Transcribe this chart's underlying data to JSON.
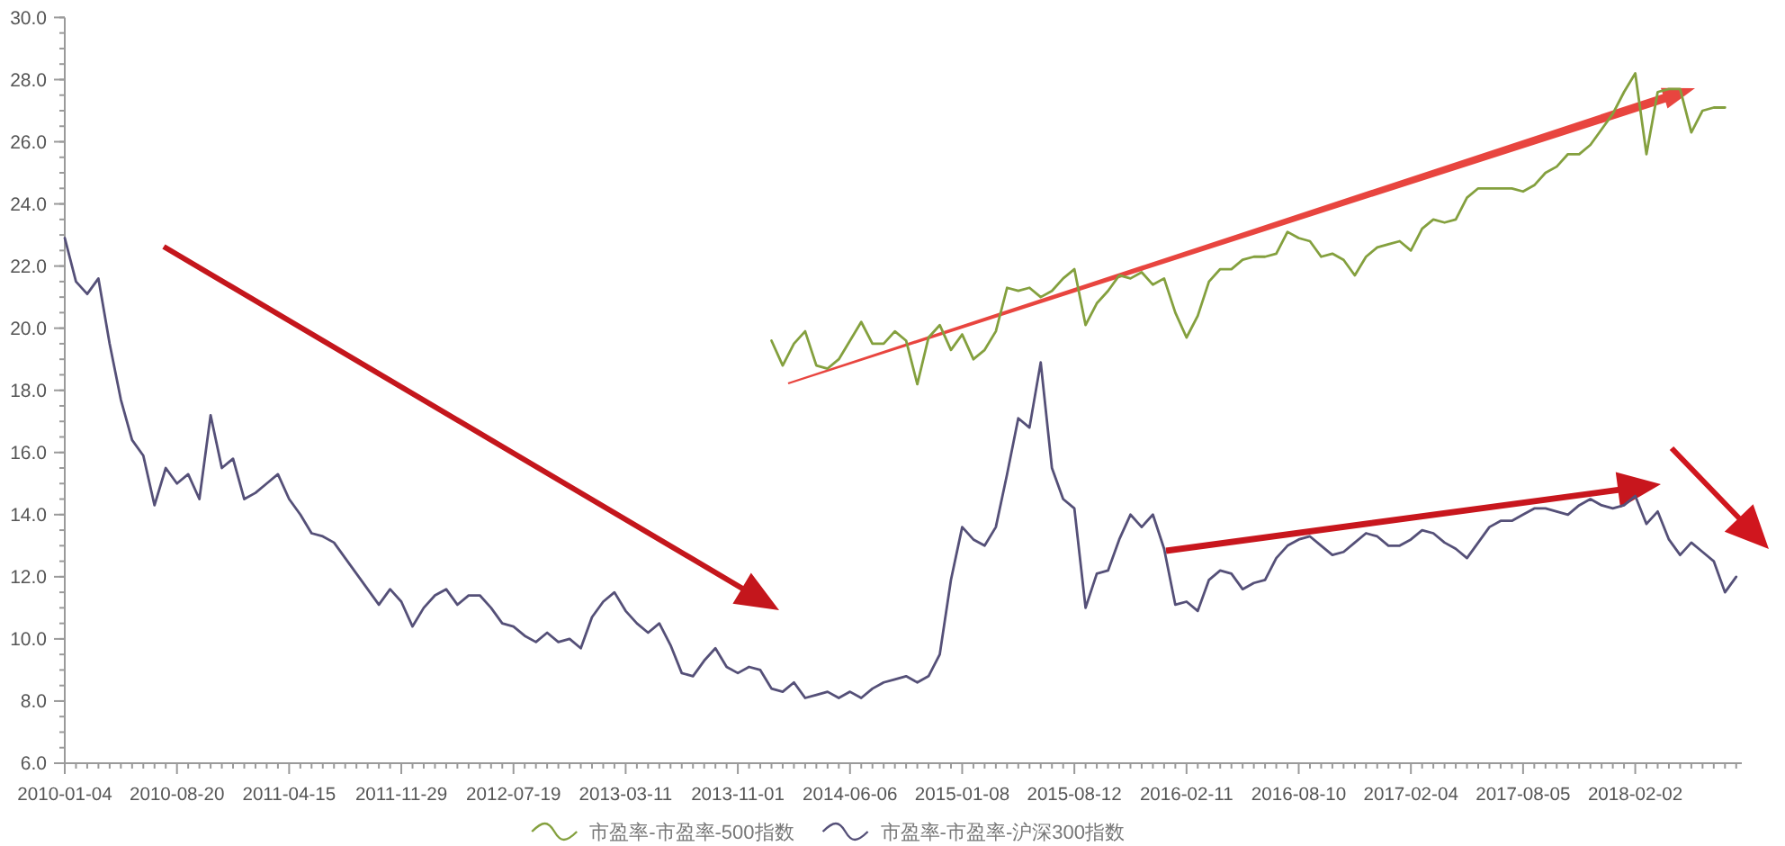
{
  "chart_data": {
    "type": "line",
    "legend": "bottom",
    "categories": [
      "2010-01-04",
      null,
      null,
      null,
      null,
      null,
      null,
      null,
      null,
      null,
      "2010-08-20",
      null,
      null,
      null,
      null,
      null,
      null,
      null,
      null,
      null,
      "2011-04-15",
      null,
      null,
      null,
      null,
      null,
      null,
      null,
      null,
      null,
      "2011-11-29",
      null,
      null,
      null,
      null,
      null,
      null,
      null,
      null,
      null,
      "2012-07-19",
      null,
      null,
      null,
      null,
      null,
      null,
      null,
      null,
      null,
      "2013-03-11",
      null,
      null,
      null,
      null,
      null,
      null,
      null,
      null,
      null,
      "2013-11-01",
      null,
      null,
      null,
      null,
      null,
      null,
      null,
      null,
      null,
      "2014-06-06",
      null,
      null,
      null,
      null,
      null,
      null,
      null,
      null,
      null,
      "2015-01-08",
      null,
      null,
      null,
      null,
      null,
      null,
      null,
      null,
      null,
      "2015-08-12",
      null,
      null,
      null,
      null,
      null,
      null,
      null,
      null,
      null,
      "2016-02-11",
      null,
      null,
      null,
      null,
      null,
      null,
      null,
      null,
      null,
      "2016-08-10",
      null,
      null,
      null,
      null,
      null,
      null,
      null,
      null,
      null,
      "2017-02-04",
      null,
      null,
      null,
      null,
      null,
      null,
      null,
      null,
      null,
      "2017-08-05",
      null,
      null,
      null,
      null,
      null,
      null,
      null,
      null,
      null,
      "2018-02-02",
      null,
      null,
      null,
      null,
      null,
      null,
      null,
      null,
      null
    ],
    "ylim": [
      6,
      30
    ],
    "yticks": [
      {
        "value": 6,
        "label": "6.0"
      },
      {
        "value": 8,
        "label": "8.0"
      },
      {
        "value": 10,
        "label": "10.0"
      },
      {
        "value": 12,
        "label": "12.0"
      },
      {
        "value": 14,
        "label": "14.0"
      },
      {
        "value": 16,
        "label": "16.0"
      },
      {
        "value": 18,
        "label": "18.0"
      },
      {
        "value": 20,
        "label": "20.0"
      },
      {
        "value": 22,
        "label": "22.0"
      },
      {
        "value": 24,
        "label": "24.0"
      },
      {
        "value": 26,
        "label": "26.0"
      },
      {
        "value": 28,
        "label": "28.0"
      },
      {
        "value": 30,
        "label": "30.0"
      }
    ],
    "series": [
      {
        "name": "市盈率-市盈率-500指数",
        "color": "#84a03e",
        "values": [
          null,
          null,
          null,
          null,
          null,
          null,
          null,
          null,
          null,
          null,
          null,
          null,
          null,
          null,
          null,
          null,
          null,
          null,
          null,
          null,
          null,
          null,
          null,
          null,
          null,
          null,
          null,
          null,
          null,
          null,
          null,
          null,
          null,
          null,
          null,
          null,
          null,
          null,
          null,
          null,
          null,
          null,
          null,
          null,
          null,
          null,
          null,
          null,
          null,
          null,
          null,
          null,
          null,
          null,
          null,
          null,
          null,
          null,
          null,
          null,
          null,
          null,
          null,
          19.6,
          18.8,
          19.5,
          19.9,
          18.8,
          18.7,
          19.0,
          19.6,
          20.2,
          19.5,
          19.5,
          19.9,
          19.6,
          18.2,
          19.7,
          20.1,
          19.3,
          19.8,
          19.0,
          19.3,
          19.9,
          21.3,
          21.2,
          21.3,
          21.0,
          21.2,
          21.6,
          21.9,
          20.1,
          20.8,
          21.2,
          21.7,
          21.6,
          21.8,
          21.4,
          21.6,
          20.5,
          19.7,
          20.4,
          21.5,
          21.9,
          21.9,
          22.2,
          22.3,
          22.3,
          22.4,
          23.1,
          22.9,
          22.8,
          22.3,
          22.4,
          22.2,
          21.7,
          22.3,
          22.6,
          22.7,
          22.8,
          22.5,
          23.2,
          23.5,
          23.4,
          23.5,
          24.2,
          24.5,
          24.5,
          24.5,
          24.5,
          24.4,
          24.6,
          25.0,
          25.2,
          25.6,
          25.6,
          25.9,
          26.4,
          26.9,
          27.6,
          28.2,
          25.6,
          27.6,
          27.7,
          27.7,
          26.3,
          27.0,
          27.1,
          27.1,
          null
        ]
      },
      {
        "name": "市盈率-市盈率-沪深300指数",
        "color": "#555078",
        "values": [
          22.9,
          21.5,
          21.1,
          21.6,
          19.5,
          17.7,
          16.4,
          15.9,
          14.3,
          15.5,
          15.0,
          15.3,
          14.5,
          17.2,
          15.5,
          15.8,
          14.5,
          14.7,
          15.0,
          15.3,
          14.5,
          14.0,
          13.4,
          13.3,
          13.1,
          12.6,
          12.1,
          11.6,
          11.1,
          11.6,
          11.2,
          10.4,
          11.0,
          11.4,
          11.6,
          11.1,
          11.4,
          11.4,
          11.0,
          10.5,
          10.4,
          10.1,
          9.9,
          10.2,
          9.9,
          10.0,
          9.7,
          10.7,
          11.2,
          11.5,
          10.9,
          10.5,
          10.2,
          10.5,
          9.8,
          8.9,
          8.8,
          9.3,
          9.7,
          9.1,
          8.9,
          9.1,
          9.0,
          8.4,
          8.3,
          8.6,
          8.1,
          8.2,
          8.3,
          8.1,
          8.3,
          8.1,
          8.4,
          8.6,
          8.7,
          8.8,
          8.6,
          8.8,
          9.5,
          11.9,
          13.6,
          13.2,
          13.0,
          13.6,
          15.3,
          17.1,
          16.8,
          18.9,
          15.5,
          14.5,
          14.2,
          11.0,
          12.1,
          12.2,
          13.2,
          14.0,
          13.6,
          14.0,
          12.9,
          11.1,
          11.2,
          10.9,
          11.9,
          12.2,
          12.1,
          11.6,
          11.8,
          11.9,
          12.6,
          13.0,
          13.2,
          13.3,
          13.0,
          12.7,
          12.8,
          13.1,
          13.4,
          13.3,
          13.0,
          13.0,
          13.2,
          13.5,
          13.4,
          13.1,
          12.9,
          12.6,
          13.1,
          13.6,
          13.8,
          13.8,
          14.0,
          14.2,
          14.2,
          14.1,
          14.0,
          14.3,
          14.5,
          14.3,
          14.2,
          14.3,
          14.6,
          13.7,
          14.1,
          13.2,
          12.7,
          13.1,
          12.8,
          12.5,
          11.5,
          12.0
        ]
      }
    ]
  }
}
